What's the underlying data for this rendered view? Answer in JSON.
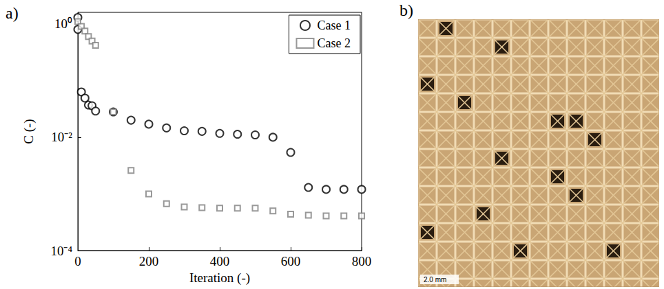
{
  "chart_data": {
    "type": "scatter",
    "panel": "a)",
    "x_label": "Iteration (-)",
    "y_label": "C (-)",
    "log": "y",
    "xlim": [
      0,
      800
    ],
    "xticks": [
      0,
      200,
      400,
      600,
      800
    ],
    "ylim": [
      0.0001,
      1.6
    ],
    "yticks": [
      {
        "value": 0.0001,
        "label": "10⁻⁴"
      },
      {
        "value": 0.01,
        "label": "10⁻²"
      },
      {
        "value": 1,
        "label": "10⁰"
      }
    ],
    "grid": false,
    "legend": "upper right",
    "series": [
      {
        "name": "Case 1",
        "color": "#000000",
        "marker": "circle",
        "x": [
          0,
          0,
          10,
          20,
          30,
          40,
          50,
          100,
          150,
          200,
          250,
          300,
          350,
          400,
          450,
          500,
          550,
          600,
          650,
          700,
          750,
          800
        ],
        "values": [
          1.3,
          0.8,
          0.063,
          0.049,
          0.037,
          0.036,
          0.029,
          0.028,
          0.02,
          0.017,
          0.0146,
          0.013,
          0.0127,
          0.0117,
          0.0113,
          0.011,
          0.01,
          0.0054,
          0.0013,
          0.0012,
          0.0012,
          0.0012
        ]
      },
      {
        "name": "Case 2",
        "color": "#808080",
        "marker": "square",
        "x": [
          0,
          10,
          20,
          30,
          40,
          50,
          100,
          150,
          200,
          250,
          300,
          350,
          400,
          450,
          500,
          550,
          600,
          650,
          700,
          750,
          800
        ],
        "values": [
          1.1,
          0.9,
          0.75,
          0.6,
          0.5,
          0.42,
          0.028,
          0.0026,
          0.001,
          0.00067,
          0.00059,
          0.00057,
          0.00056,
          0.00056,
          0.00056,
          0.0005,
          0.00044,
          0.00042,
          0.00041,
          0.00041,
          0.00041
        ]
      }
    ]
  },
  "image_panel": {
    "panel": "b)",
    "scale_bar": "2.0 mm"
  }
}
